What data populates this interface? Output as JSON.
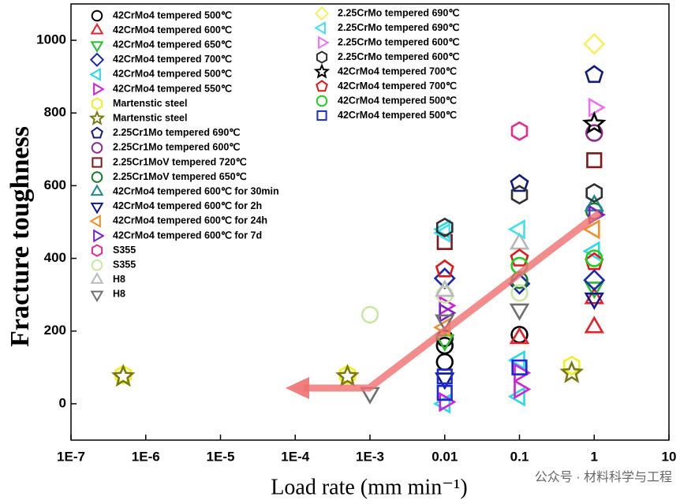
{
  "chart_data": {
    "type": "scatter",
    "xlabel": "Load rate (mm min⁻¹)",
    "ylabel": "Fracture toughness",
    "watermark": "公众号 · 材料科学与工程",
    "xscale": "log",
    "xlim": [
      1e-07,
      10
    ],
    "xticks": [
      {
        "value": 1e-07,
        "label": "1E-7"
      },
      {
        "value": 1e-06,
        "label": "1E-6"
      },
      {
        "value": 1e-05,
        "label": "1E-5"
      },
      {
        "value": 0.0001,
        "label": "1E-4"
      },
      {
        "value": 0.001,
        "label": "1E-3"
      },
      0.01,
      0.1,
      1,
      10
    ],
    "ylim": [
      -100,
      1100
    ],
    "yticks": [
      0,
      200,
      400,
      600,
      800,
      1000
    ],
    "series": [
      {
        "name": "42CrMo4 tempered 500℃",
        "color": "#000000",
        "marker": "circle",
        "x": [
          0.01,
          0.01,
          0.01,
          0.1
        ],
        "y": [
          180,
          160,
          115,
          190
        ]
      },
      {
        "name": "42CrMo4 tempered 600℃",
        "color": "#e8202a",
        "marker": "triangle-up",
        "x": [
          0.1,
          1,
          1
        ],
        "y": [
          180,
          210,
          290
        ]
      },
      {
        "name": "42CrMo4 tempered 650℃",
        "color": "#22c02a",
        "marker": "triangle-down",
        "x": [
          0.01,
          1
        ],
        "y": [
          175,
          320
        ]
      },
      {
        "name": "42CrMo4 tempered 700℃",
        "color": "#1a2ab0",
        "marker": "diamond",
        "x": [
          0.01,
          0.1,
          1
        ],
        "y": [
          345,
          330,
          340
        ]
      },
      {
        "name": "42CrMo4 tempered 500℃",
        "color": "#2ad8e8",
        "marker": "triangle-left",
        "x": [
          0.01,
          0.01,
          0.1,
          0.1,
          1
        ],
        "y": [
          480,
          0,
          20,
          120,
          420
        ]
      },
      {
        "name": "42CrMo4 tempered 550℃",
        "color": "#d020d8",
        "marker": "triangle-right",
        "x": [
          0.01,
          0.01,
          0.1,
          0.1
        ],
        "y": [
          270,
          5,
          40,
          85
        ]
      },
      {
        "name": "Martenstic steel",
        "color": "#f0f020",
        "marker": "hexagon",
        "x": [
          5e-07,
          0.0005,
          0.5
        ],
        "y": [
          80,
          80,
          105
        ]
      },
      {
        "name": "Martenstic steel",
        "color": "#7a7a10",
        "marker": "star",
        "x": [
          5e-07,
          0.0005,
          0.5
        ],
        "y": [
          75,
          75,
          85
        ]
      },
      {
        "name": "2.25Cr1Mo tempered 690℃",
        "color": "#101a80",
        "marker": "pentagon",
        "x": [
          0.1,
          1
        ],
        "y": [
          605,
          905
        ]
      },
      {
        "name": "2.25Cr1Mo tempered 600℃",
        "color": "#8a2a8a",
        "marker": "circle",
        "x": [
          1
        ],
        "y": [
          745
        ]
      },
      {
        "name": "2.25Cr1MoV tempered 720℃",
        "color": "#801818",
        "marker": "square",
        "x": [
          0.01,
          1
        ],
        "y": [
          445,
          670
        ]
      },
      {
        "name": "2.25Cr1MoV tempered 650℃",
        "color": "#1a7a2a",
        "marker": "circle",
        "x": [
          0.1,
          1
        ],
        "y": [
          340,
          530
        ]
      },
      {
        "name": "42CrMo4 tempered 600℃ for 30min",
        "color": "#1a8a8a",
        "marker": "triangle-up",
        "x": [
          1
        ],
        "y": [
          545
        ]
      },
      {
        "name": "42CrMo4 tempered 600℃ for 2h",
        "color": "#101a90",
        "marker": "triangle-down",
        "x": [
          0.01,
          1
        ],
        "y": [
          70,
          290
        ]
      },
      {
        "name": "42CrMo4 tempered 600℃ for 24h",
        "color": "#f0902a",
        "marker": "triangle-left",
        "x": [
          0.01,
          1
        ],
        "y": [
          210,
          480
        ]
      },
      {
        "name": "42CrMo4 tempered 600℃ for 7d",
        "color": "#7a20c8",
        "marker": "triangle-right",
        "x": [
          0.01,
          1
        ],
        "y": [
          250,
          520
        ]
      },
      {
        "name": "S355",
        "color": "#e82a8a",
        "marker": "hexagon",
        "x": [
          0.1
        ],
        "y": [
          750
        ]
      },
      {
        "name": "S355",
        "color": "#c8e8a0",
        "marker": "circle",
        "x": [
          0.001,
          0.01,
          0.1
        ],
        "y": [
          245,
          300,
          305
        ]
      },
      {
        "name": "H8",
        "color": "#b8b8b8",
        "marker": "triangle-up",
        "x": [
          0.01,
          0.1
        ],
        "y": [
          310,
          440
        ]
      },
      {
        "name": "H8",
        "color": "#707070",
        "marker": "triangle-down",
        "x": [
          0.001,
          0.01,
          0.1
        ],
        "y": [
          30,
          230,
          260
        ]
      },
      {
        "name": "2.25CrMo tempered 690℃",
        "color": "#f8f060",
        "marker": "diamond",
        "x": [
          1
        ],
        "y": [
          990
        ]
      },
      {
        "name": "2.25CrMo tempered 690℃",
        "color": "#40e0f0",
        "marker": "triangle-left",
        "x": [
          0.01,
          0.1
        ],
        "y": [
          470,
          480
        ]
      },
      {
        "name": "2.25CrMo tempered 600℃",
        "color": "#f070f0",
        "marker": "triangle-right",
        "x": [
          1
        ],
        "y": [
          815
        ]
      },
      {
        "name": "2.25CrMo tempered 600℃",
        "color": "#303030",
        "marker": "hexagon",
        "x": [
          0.01,
          0.1,
          1
        ],
        "y": [
          485,
          575,
          580
        ]
      },
      {
        "name": "42CrMo4 tempered 700℃",
        "color": "#000000",
        "marker": "star",
        "x": [
          1
        ],
        "y": [
          770
        ]
      },
      {
        "name": "42CrMo4 tempered 700℃",
        "color": "#e01818",
        "marker": "pentagon",
        "x": [
          0.01,
          0.1,
          1
        ],
        "y": [
          370,
          400,
          390
        ]
      },
      {
        "name": "42CrMo4 tempered 500℃",
        "color": "#20d020",
        "marker": "circle",
        "x": [
          0.1,
          1
        ],
        "y": [
          380,
          400
        ]
      },
      {
        "name": "42CrMo4 tempered 500℃",
        "color": "#1a2ad0",
        "marker": "square",
        "x": [
          0.01,
          0.01,
          0.1
        ],
        "y": [
          75,
          30,
          100
        ]
      }
    ]
  }
}
